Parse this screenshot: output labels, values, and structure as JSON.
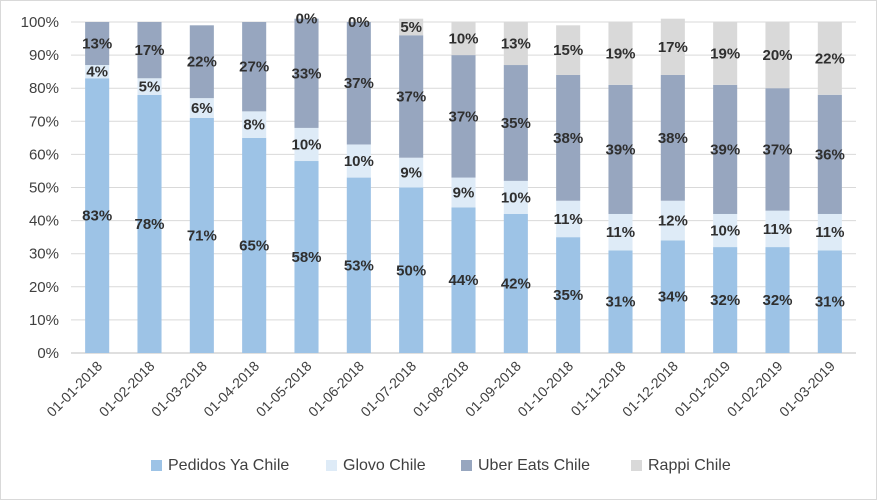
{
  "chart_data": {
    "type": "bar",
    "stacked": true,
    "percent": true,
    "categories": [
      "01-01-2018",
      "01-02-2018",
      "01-03-2018",
      "01-04-2018",
      "01-05-2018",
      "01-06-2018",
      "01-07-2018",
      "01-08-2018",
      "01-09-2018",
      "01-10-2018",
      "01-11-2018",
      "01-12-2018",
      "01-01-2019",
      "01-02-2019",
      "01-03-2019"
    ],
    "series": [
      {
        "name": "Pedidos Ya Chile",
        "color": "#9dc3e6",
        "values": [
          83,
          78,
          71,
          65,
          58,
          53,
          50,
          44,
          42,
          35,
          31,
          34,
          32,
          32,
          31
        ],
        "labels": [
          "83%",
          "78%",
          "71%",
          "65%",
          "58%",
          "53%",
          "50%",
          "44%",
          "42%",
          "35%",
          "31%",
          "34%",
          "32%",
          "32%",
          "31%"
        ]
      },
      {
        "name": "Glovo Chile",
        "color": "#deebf7",
        "values": [
          4,
          5,
          6,
          8,
          10,
          10,
          9,
          9,
          10,
          11,
          11,
          12,
          10,
          11,
          11
        ],
        "labels": [
          "4%",
          "5%",
          "6%",
          "8%",
          "10%",
          "10%",
          "9%",
          "9%",
          "10%",
          "11%",
          "11%",
          "12%",
          "10%",
          "11%",
          "11%"
        ]
      },
      {
        "name": "Uber Eats Chile",
        "color": "#97a6bf",
        "values": [
          13,
          17,
          22,
          27,
          33,
          37,
          37,
          37,
          35,
          38,
          39,
          38,
          39,
          37,
          36
        ],
        "labels": [
          "13%",
          "17%",
          "22%",
          "27%",
          "33%",
          "37%",
          "37%",
          "37%",
          "35%",
          "38%",
          "39%",
          "38%",
          "39%",
          "37%",
          "36%"
        ]
      },
      {
        "name": "Rappi Chile",
        "color": "#d9d9d9",
        "values": [
          0,
          0,
          0,
          0,
          0,
          0,
          5,
          10,
          13,
          15,
          19,
          17,
          19,
          20,
          22
        ],
        "labels": [
          "",
          "",
          "",
          "",
          "0%",
          "0%",
          "5%",
          "10%",
          "13%",
          "15%",
          "19%",
          "17%",
          "19%",
          "20%",
          "22%"
        ]
      }
    ],
    "yticks": [
      "0%",
      "10%",
      "20%",
      "30%",
      "40%",
      "50%",
      "60%",
      "70%",
      "80%",
      "90%",
      "100%"
    ],
    "ylim": [
      0,
      100
    ],
    "legend_position": "bottom",
    "grid": true,
    "title": "",
    "xlabel": "",
    "ylabel": ""
  }
}
